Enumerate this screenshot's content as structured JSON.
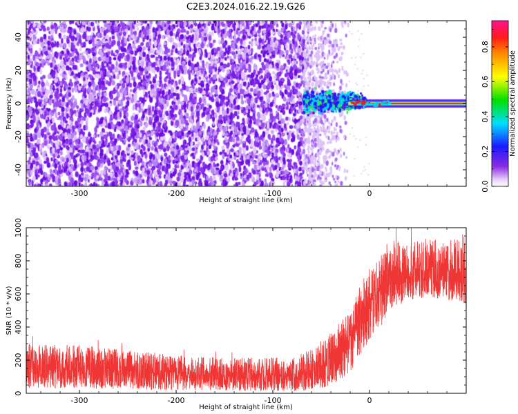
{
  "figure": {
    "title": "C2E3.2024.016.22.19.G26"
  },
  "chart_data": [
    {
      "type": "heatmap",
      "name": "spectrogram",
      "xlabel": "Height of straight line (km)",
      "ylabel": "Frequency (Hz)",
      "xlim": [
        -355,
        100
      ],
      "ylim": [
        -50,
        50
      ],
      "xticks": [
        -300,
        -200,
        -100,
        0
      ],
      "yticks": [
        -40,
        -20,
        0,
        20,
        40
      ],
      "tone_track": {
        "x_start": -68,
        "x_end": 100,
        "frequency_hz": 0,
        "strong_from_km": -22
      },
      "colorbar": {
        "label": "Normalized spectral amplitude",
        "range": [
          0,
          0.95
        ],
        "ticks": [
          0.0,
          0.2,
          0.4,
          0.6,
          0.8
        ],
        "colormap": "rainbow: white, purple, blue, cyan, green, yellow, orange, red, magenta"
      },
      "colors": {
        "background_noise": "#7a1fe8",
        "light_noise": "#cfa6f5",
        "track_strong": "#e82020"
      }
    },
    {
      "type": "line",
      "name": "snr",
      "xlabel": "Height of straight line (km)",
      "ylabel": "SNR (10 * v/v)",
      "xlim": [
        -355,
        100
      ],
      "ylim": [
        0,
        1000
      ],
      "xticks": [
        -300,
        -200,
        -100,
        0
      ],
      "yticks": [
        0,
        200,
        400,
        600,
        800,
        1000
      ],
      "series_color": "#f03535",
      "envelope": [
        {
          "x": -355,
          "mean": 150,
          "low": 30,
          "high": 300
        },
        {
          "x": -300,
          "mean": 145,
          "low": 30,
          "high": 290
        },
        {
          "x": -250,
          "mean": 135,
          "low": 25,
          "high": 260
        },
        {
          "x": -200,
          "mean": 115,
          "low": 20,
          "high": 230
        },
        {
          "x": -150,
          "mean": 105,
          "low": 15,
          "high": 215
        },
        {
          "x": -100,
          "mean": 105,
          "low": 15,
          "high": 215
        },
        {
          "x": -75,
          "mean": 108,
          "low": 15,
          "high": 225
        },
        {
          "x": -60,
          "mean": 130,
          "low": 20,
          "high": 270
        },
        {
          "x": -45,
          "mean": 175,
          "low": 40,
          "high": 340
        },
        {
          "x": -30,
          "mean": 240,
          "low": 80,
          "high": 430
        },
        {
          "x": -20,
          "mean": 330,
          "low": 120,
          "high": 500
        },
        {
          "x": -10,
          "mean": 470,
          "low": 230,
          "high": 660
        },
        {
          "x": 0,
          "mean": 540,
          "low": 300,
          "high": 760
        },
        {
          "x": 10,
          "mean": 600,
          "low": 380,
          "high": 830
        },
        {
          "x": 20,
          "mean": 680,
          "low": 500,
          "high": 940
        },
        {
          "x": 40,
          "mean": 720,
          "low": 560,
          "high": 900
        },
        {
          "x": 60,
          "mean": 730,
          "low": 580,
          "high": 940
        },
        {
          "x": 80,
          "mean": 720,
          "low": 560,
          "high": 920
        },
        {
          "x": 100,
          "mean": 710,
          "low": 540,
          "high": 1000
        }
      ]
    }
  ]
}
